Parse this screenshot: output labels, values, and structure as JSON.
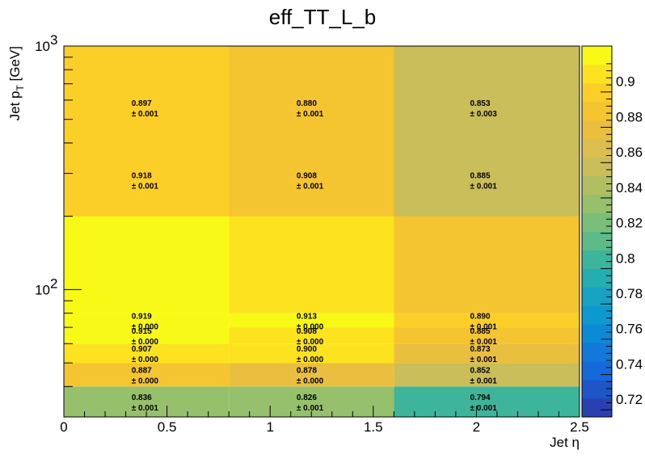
{
  "chart_data": {
    "type": "heatmap",
    "title": "eff_TT_L_b",
    "xlabel": "Jet η",
    "ylabel": "Jet p_T [GeV]",
    "x_edges": [
      0,
      0.8,
      1.6,
      2.5
    ],
    "y_edges": [
      30,
      40,
      50,
      60,
      70,
      80,
      90,
      200,
      1000
    ],
    "yscale": "log",
    "xlim": [
      0,
      2.5
    ],
    "ylim": [
      30,
      1000
    ],
    "zlim": [
      0.71,
      0.92
    ],
    "x_tick_labels": [
      "0",
      "0.5",
      "1",
      "1.5",
      "2",
      "2.5"
    ],
    "y_tick_labels": [
      "10",
      "10"
    ],
    "y_tick_exponents": [
      "2",
      "3"
    ],
    "colorbar_tick_labels": [
      "0.72",
      "0.74",
      "0.76",
      "0.78",
      "0.8",
      "0.82",
      "0.84",
      "0.86",
      "0.88",
      "0.9"
    ],
    "cells": [
      {
        "x_bin": 0,
        "y_bin": 0,
        "value": "0.836",
        "error": "± 0.001"
      },
      {
        "x_bin": 1,
        "y_bin": 0,
        "value": "0.826",
        "error": "± 0.001"
      },
      {
        "x_bin": 2,
        "y_bin": 0,
        "value": "0.794",
        "error": "± 0.001"
      },
      {
        "x_bin": 0,
        "y_bin": 1,
        "value": "0.887",
        "error": "± 0.000"
      },
      {
        "x_bin": 1,
        "y_bin": 1,
        "value": "0.878",
        "error": "± 0.000"
      },
      {
        "x_bin": 2,
        "y_bin": 1,
        "value": "0.852",
        "error": "± 0.001"
      },
      {
        "x_bin": 0,
        "y_bin": 2,
        "value": "0.907",
        "error": "± 0.000"
      },
      {
        "x_bin": 1,
        "y_bin": 2,
        "value": "0.900",
        "error": "± 0.000"
      },
      {
        "x_bin": 2,
        "y_bin": 2,
        "value": "0.873",
        "error": "± 0.001"
      },
      {
        "x_bin": 0,
        "y_bin": 3,
        "value": "0.915",
        "error": "± 0.000"
      },
      {
        "x_bin": 1,
        "y_bin": 3,
        "value": "0.908",
        "error": "± 0.000"
      },
      {
        "x_bin": 2,
        "y_bin": 3,
        "value": "0.885",
        "error": "± 0.001"
      },
      {
        "x_bin": 0,
        "y_bin": 4,
        "value": "0.919",
        "error": "± 0.000"
      },
      {
        "x_bin": 1,
        "y_bin": 4,
        "value": "0.913",
        "error": "± 0.000"
      },
      {
        "x_bin": 2,
        "y_bin": 4,
        "value": "0.890",
        "error": "± 0.001"
      },
      {
        "x_bin": 0,
        "y_bin": 5,
        "value": "0.918",
        "error": "± 0.001"
      },
      {
        "x_bin": 1,
        "y_bin": 5,
        "value": "0.908",
        "error": "± 0.001"
      },
      {
        "x_bin": 2,
        "y_bin": 5,
        "value": "0.885",
        "error": "± 0.001"
      },
      {
        "x_bin": 0,
        "y_bin": 7,
        "value": "0.897",
        "error": "± 0.001"
      },
      {
        "x_bin": 1,
        "y_bin": 7,
        "value": "0.880",
        "error": "± 0.001"
      },
      {
        "x_bin": 2,
        "y_bin": 7,
        "value": "0.853",
        "error": "± 0.003"
      }
    ],
    "palette": [
      "#2b3fb0",
      "#1e55c8",
      "#1569d8",
      "#1279d8",
      "#0b8ad6",
      "#0d98cf",
      "#17a3c2",
      "#25adb0",
      "#3db59a",
      "#5cbb88",
      "#79bf7a",
      "#96c06c",
      "#b1bf62",
      "#c9be5a",
      "#dcbd50",
      "#eabf40",
      "#f5c431",
      "#fbcf28",
      "#fde31f",
      "#f9f918"
    ]
  }
}
